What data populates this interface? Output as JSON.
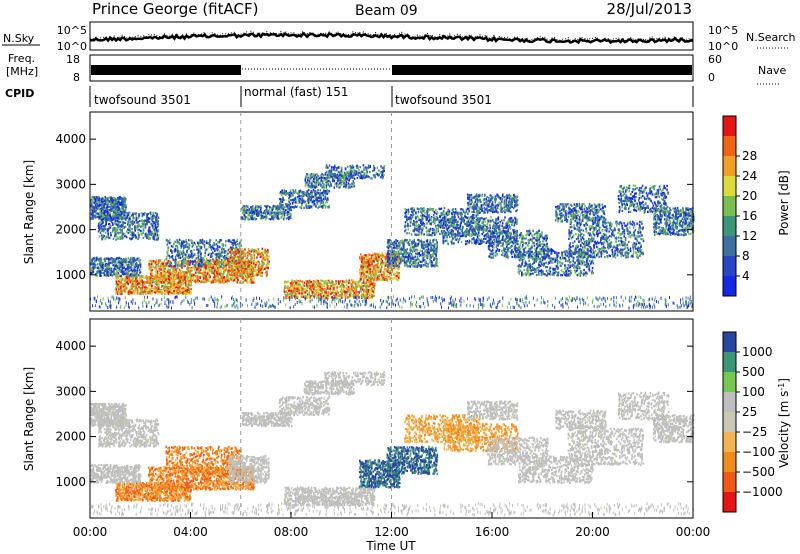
{
  "header": {
    "station": "Prince George (fitACF)",
    "beam": "Beam 09",
    "date": "28/Jul/2013"
  },
  "chart_data": [
    {
      "type": "line",
      "panel": "noise",
      "left_label": "N.Sky",
      "right_label": "N.Search",
      "left_ticks": [
        "10^5",
        "10^0"
      ],
      "right_ticks": [
        "10^5",
        "10^0"
      ],
      "scale": "log"
    },
    {
      "type": "line",
      "panel": "frequency",
      "left_label": "Freq. [MHz]",
      "right_label": "Nave",
      "left_ticks": [
        "18",
        "8"
      ],
      "right_ticks": [
        "60",
        "0"
      ]
    },
    {
      "type": "table",
      "panel": "cpid",
      "label": "CPID",
      "segments": [
        {
          "name": "twofsound 3501",
          "start": 0,
          "end": 6
        },
        {
          "name": "normal (fast) 151",
          "start": 6,
          "end": 12
        },
        {
          "name": "twofsound 3501",
          "start": 12,
          "end": 24
        }
      ]
    },
    {
      "type": "heatmap",
      "panel": "power",
      "ylabel": "Slant Range [km]",
      "yticks": [
        1000,
        2000,
        3000,
        4000
      ],
      "ylim": [
        200,
        4600
      ],
      "xlim": [
        0,
        24
      ],
      "colorbar": {
        "label": "Power [dB]",
        "ticks": [
          "4",
          "8",
          "12",
          "16",
          "20",
          "24",
          "28"
        ]
      }
    },
    {
      "type": "heatmap",
      "panel": "velocity",
      "ylabel": "Slant Range [km]",
      "yticks": [
        1000,
        2000,
        3000,
        4000
      ],
      "ylim": [
        200,
        4600
      ],
      "xlim": [
        0,
        24
      ],
      "xticks": [
        "00:00",
        "04:00",
        "08:00",
        "12:00",
        "16:00",
        "20:00",
        "00:00"
      ],
      "xlabel": "Time UT",
      "colorbar": {
        "label": "Velocity [m s^-1]",
        "ticks": [
          "1000",
          "500",
          "100",
          "25",
          "−25",
          "−100",
          "−500",
          "−1000"
        ]
      }
    }
  ]
}
